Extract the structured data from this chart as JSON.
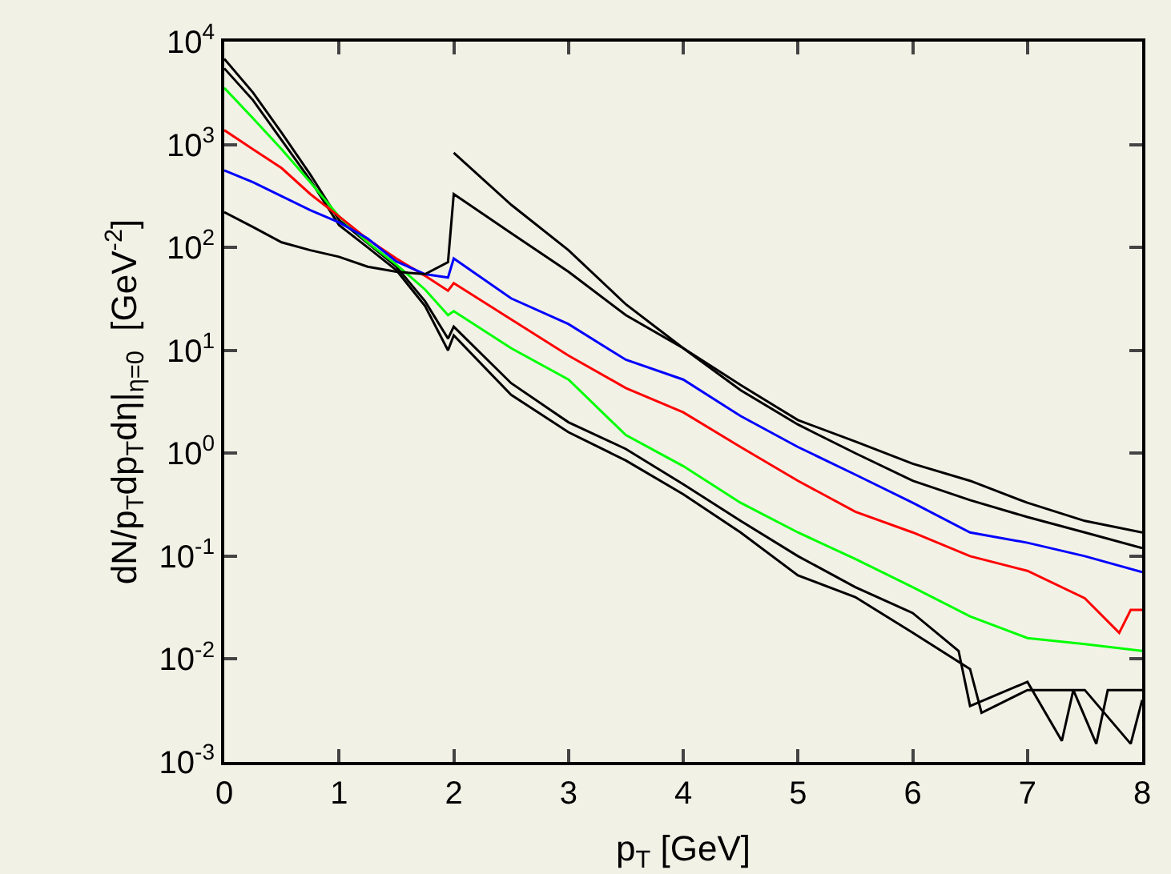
{
  "chart_data": {
    "type": "line",
    "xlabel": "p$_{T}$ [GeV]",
    "ylabel": "dN/p$_{T}$dp$_{T}$dη|$_{η=0}$  [GeV$^{-2}$]",
    "log": "y",
    "grid": false,
    "marker": "none",
    "line_style": "solid",
    "xlim": [
      0,
      8
    ],
    "xticks": [
      0,
      1,
      2,
      3,
      4,
      5,
      6,
      7,
      8
    ],
    "ylim": [
      0.001,
      10000
    ],
    "yticks": [
      {
        "value": 0.001,
        "label": "10$^{-3}$"
      },
      {
        "value": 0.01,
        "label": "10$^{-2}$"
      },
      {
        "value": 0.1,
        "label": "10$^{-1}$"
      },
      {
        "value": 1,
        "label": "10$^{0}$"
      },
      {
        "value": 10,
        "label": "10$^{1}$"
      },
      {
        "value": 100,
        "label": "10$^{2}$"
      },
      {
        "value": 1000,
        "label": "10$^{3}$"
      },
      {
        "value": 10000,
        "label": "10$^{4}$"
      }
    ],
    "series": [
      {
        "color": "#000000",
        "x": [
          0,
          0.25,
          0.5,
          0.75,
          1,
          1.25,
          1.5,
          1.75,
          1.95,
          2,
          2.5,
          3,
          3.5,
          4,
          4.5,
          5,
          5.5,
          6,
          6.4,
          6.5,
          7,
          7.3,
          7.4,
          7.6,
          7.7,
          8
        ],
        "values": [
          6800,
          3200,
          1300,
          510,
          185,
          110,
          65,
          30,
          13,
          17,
          4.8,
          2,
          1.1,
          0.5,
          0.22,
          0.1,
          0.05,
          0.028,
          0.012,
          0.0035,
          0.006,
          0.0016,
          0.005,
          0.0015,
          0.005,
          0.005
        ]
      },
      {
        "color": "#000000",
        "x": [
          0,
          0.25,
          0.5,
          0.75,
          1,
          1.25,
          1.5,
          1.75,
          1.95,
          2,
          2.5,
          3,
          3.5,
          4,
          4.5,
          5,
          5.5,
          6,
          6.5,
          6.6,
          7,
          7.5,
          7.9,
          8
        ],
        "values": [
          5500,
          2700,
          1100,
          450,
          165,
          100,
          60,
          27,
          10,
          14,
          3.7,
          1.6,
          0.85,
          0.4,
          0.17,
          0.065,
          0.04,
          0.018,
          0.008,
          0.003,
          0.005,
          0.005,
          0.0015,
          0.004
        ]
      },
      {
        "color": "#00ff00",
        "x": [
          0,
          0.25,
          0.5,
          0.75,
          1,
          1.25,
          1.5,
          1.75,
          1.95,
          2,
          2.5,
          3,
          3.5,
          4,
          4.5,
          5,
          5.5,
          6,
          6.5,
          7,
          7.5,
          8
        ],
        "values": [
          3550,
          1800,
          900,
          430,
          200,
          112,
          68,
          39,
          22,
          24,
          10.5,
          5.2,
          1.5,
          0.75,
          0.33,
          0.17,
          0.094,
          0.05,
          0.026,
          0.016,
          0.014,
          0.012
        ]
      },
      {
        "color": "#ff0000",
        "x": [
          0,
          0.25,
          0.5,
          0.75,
          1,
          1.25,
          1.5,
          1.75,
          1.95,
          2,
          2.5,
          3,
          3.5,
          4,
          4.5,
          5,
          5.5,
          6,
          6.5,
          7,
          7.5,
          7.8,
          7.9,
          8
        ],
        "values": [
          1380,
          900,
          590,
          330,
          200,
          120,
          78,
          53,
          38,
          45,
          20,
          8.9,
          4.3,
          2.5,
          1.15,
          0.54,
          0.27,
          0.17,
          0.1,
          0.072,
          0.039,
          0.018,
          0.03,
          0.03
        ]
      },
      {
        "color": "#0000ff",
        "x": [
          0,
          0.25,
          0.5,
          0.75,
          1,
          1.25,
          1.5,
          1.75,
          1.95,
          2,
          2.5,
          3,
          3.5,
          4,
          4.5,
          5,
          5.5,
          6,
          6.5,
          7,
          7.5,
          8
        ],
        "values": [
          560,
          430,
          315,
          230,
          175,
          122,
          73,
          55,
          51,
          78,
          32,
          18,
          8.1,
          5.2,
          2.3,
          1.15,
          0.62,
          0.33,
          0.17,
          0.135,
          0.1,
          0.07
        ]
      },
      {
        "color": "#000000",
        "x": [
          0,
          0.25,
          0.5,
          0.75,
          1,
          1.25,
          1.5,
          1.75,
          1.95,
          2,
          2.5,
          3,
          3.5,
          4,
          4.5,
          5,
          5.5,
          6,
          6.5,
          7,
          7.5,
          8
        ],
        "values": [
          220,
          158,
          112,
          94,
          81,
          65,
          58,
          55,
          72,
          330,
          138,
          58,
          22,
          10.5,
          4.6,
          2.1,
          1.3,
          0.79,
          0.54,
          0.33,
          0.22,
          0.17
        ]
      },
      {
        "color": "#000000",
        "x": [
          2,
          2.5,
          3,
          3.5,
          4,
          4.5,
          5,
          5.5,
          6,
          6.5,
          7,
          7.5,
          8
        ],
        "values": [
          830,
          260,
          94,
          28,
          10.5,
          4.1,
          1.9,
          1,
          0.54,
          0.35,
          0.24,
          0.17,
          0.12
        ]
      }
    ]
  }
}
